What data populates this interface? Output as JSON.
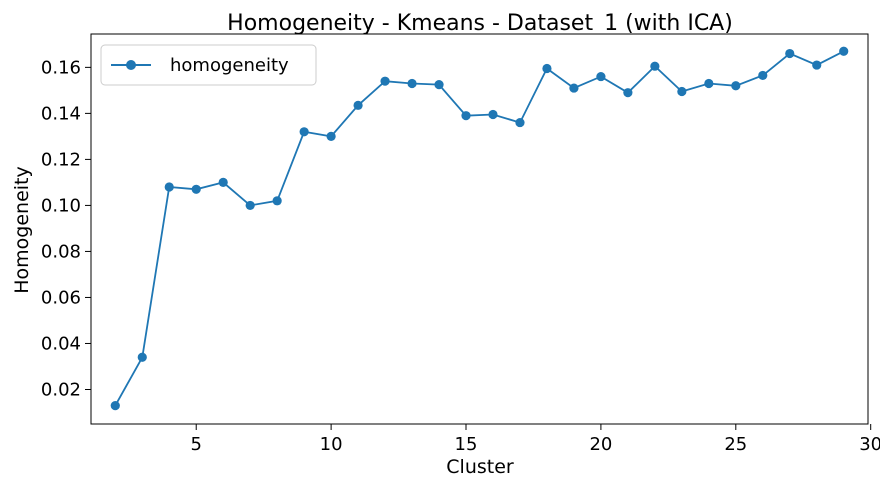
{
  "chart_data": {
    "type": "line",
    "title": "Homogeneity - Kmeans - Dataset_1 (with ICA)",
    "xlabel": "Cluster",
    "ylabel": "Homogeneity",
    "xlim": [
      1.1,
      29.9
    ],
    "ylim": [
      0.005,
      0.1745
    ],
    "xticks": [
      5,
      10,
      15,
      20,
      25,
      30
    ],
    "yticks": [
      0.02,
      0.04,
      0.06,
      0.08,
      0.1,
      0.12,
      0.14,
      0.16
    ],
    "ytick_labels": [
      "0.02",
      "0.04",
      "0.06",
      "0.08",
      "0.10",
      "0.12",
      "0.14",
      "0.16"
    ],
    "grid": false,
    "legend_position": "top-left",
    "series": [
      {
        "name": "homogeneity",
        "color": "#1f77b4",
        "marker": "circle",
        "x": [
          2,
          3,
          4,
          5,
          6,
          7,
          8,
          9,
          10,
          11,
          12,
          13,
          14,
          15,
          16,
          17,
          18,
          19,
          20,
          21,
          22,
          23,
          24,
          25,
          26,
          27,
          28,
          29
        ],
        "y": [
          0.013,
          0.034,
          0.108,
          0.107,
          0.11,
          0.1,
          0.102,
          0.132,
          0.13,
          0.1435,
          0.154,
          0.153,
          0.1525,
          0.139,
          0.1395,
          0.136,
          0.1595,
          0.151,
          0.156,
          0.149,
          0.1605,
          0.1495,
          0.153,
          0.152,
          0.1565,
          0.166,
          0.161,
          0.167
        ]
      }
    ]
  }
}
